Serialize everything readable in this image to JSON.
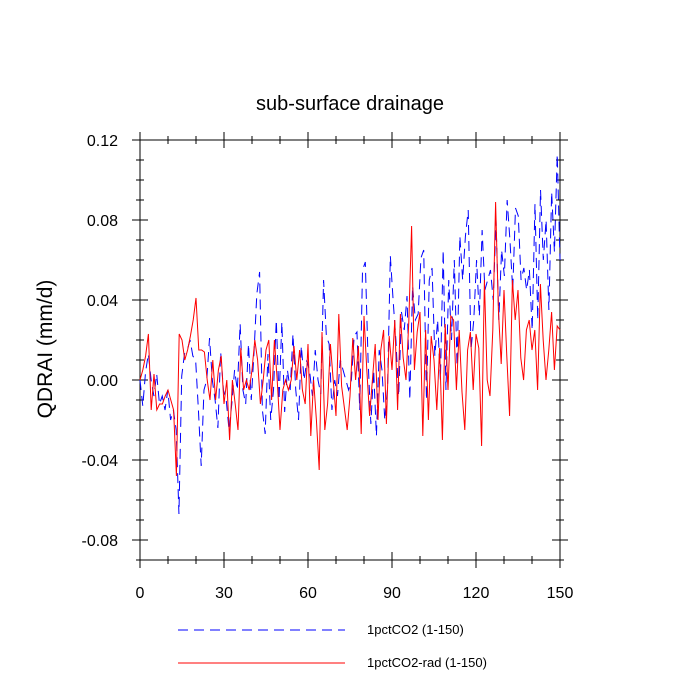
{
  "chart_data": {
    "type": "line",
    "title": "sub-surface drainage",
    "xlabel": "",
    "ylabel": "QDRAI  (mm/d)",
    "xlim": [
      0,
      150
    ],
    "ylim": [
      -0.09,
      0.12
    ],
    "xticks": [
      0,
      30,
      60,
      90,
      120,
      150
    ],
    "xtick_labels": [
      "0",
      "30",
      "60",
      "90",
      "120",
      "150"
    ],
    "yticks": [
      -0.08,
      -0.04,
      0.0,
      0.04,
      0.08,
      0.12
    ],
    "ytick_labels": [
      "-0.08",
      "-0.04",
      "0.00",
      "0.04",
      "0.08",
      "0.12"
    ],
    "grid": false,
    "legend_position": "bottom",
    "series": [
      {
        "name": "1pctCO2 (1-150)",
        "color": "#0000ff",
        "style": "dashed",
        "values": [
          0.0,
          -0.013,
          0.004,
          0.013,
          0.0,
          -0.008,
          0.003,
          -0.012,
          -0.008,
          -0.015,
          -0.005,
          -0.02,
          -0.015,
          -0.025,
          -0.067,
          0.002,
          0.013,
          0.015,
          0.02,
          0.012,
          0.01,
          -0.015,
          -0.043,
          -0.005,
          0.0,
          0.021,
          0.0,
          -0.01,
          -0.024,
          0.014,
          -0.005,
          -0.01,
          -0.025,
          -0.012,
          0.005,
          -0.005,
          0.028,
          -0.005,
          -0.012,
          0.018,
          -0.01,
          0.014,
          0.043,
          0.054,
          -0.015,
          -0.027,
          0.013,
          -0.02,
          -0.005,
          0.03,
          -0.01,
          0.029,
          -0.016,
          0.005,
          -0.005,
          0.023,
          -0.005,
          -0.02,
          0.017,
          0.0,
          0.01,
          0.004,
          -0.008,
          0.015,
          0.0,
          -0.007,
          0.05,
          0.022,
          0.018,
          -0.015,
          0.0,
          -0.008,
          0.01,
          0.005,
          0.0,
          -0.005,
          0.0,
          0.022,
          0.024,
          -0.015,
          0.055,
          0.059,
          0.01,
          -0.022,
          0.005,
          -0.028,
          0.015,
          0.005,
          -0.02,
          -0.004,
          0.062,
          0.04,
          0.02,
          -0.008,
          0.034,
          0.025,
          0.042,
          -0.01,
          0.047,
          0.03,
          0.033,
          0.061,
          0.065,
          -0.01,
          0.05,
          0.056,
          0.012,
          0.03,
          0.0,
          0.065,
          -0.005,
          0.05,
          0.02,
          0.06,
          0.007,
          0.072,
          0.05,
          0.072,
          0.085,
          0.015,
          0.03,
          0.06,
          0.032,
          0.075,
          0.045,
          0.05,
          0.055,
          0.04,
          0.08,
          0.03,
          0.065,
          0.052,
          0.09,
          0.07,
          0.045,
          0.086,
          0.082,
          0.05,
          0.056,
          0.045,
          0.055,
          0.025,
          0.088,
          0.03,
          0.095,
          0.06,
          0.08,
          0.035,
          0.094,
          0.064,
          0.113,
          0.06
        ]
      },
      {
        "name": "1pctCO2-rad (1-150)",
        "color": "#ff0000",
        "style": "solid",
        "values": [
          0.0,
          0.005,
          0.012,
          0.023,
          -0.015,
          0.003,
          -0.015,
          -0.012,
          -0.012,
          -0.008,
          -0.005,
          -0.01,
          -0.015,
          -0.048,
          0.023,
          0.02,
          0.01,
          0.015,
          0.022,
          0.03,
          0.041,
          0.015,
          0.015,
          0.014,
          0.0,
          -0.01,
          0.01,
          -0.01,
          0.005,
          0.012,
          -0.012,
          0.0,
          -0.03,
          0.0,
          -0.012,
          -0.025,
          0.016,
          -0.005,
          0.0,
          -0.005,
          0.005,
          0.02,
          0.01,
          -0.012,
          0.0,
          0.015,
          0.02,
          -0.01,
          0.02,
          0.0,
          -0.025,
          -0.005,
          0.0,
          -0.005,
          0.0,
          0.017,
          0.0,
          0.015,
          -0.005,
          -0.012,
          0.018,
          -0.028,
          0.0,
          -0.02,
          -0.045,
          0.024,
          -0.025,
          -0.012,
          0.018,
          0.0,
          -0.018,
          0.033,
          -0.003,
          -0.014,
          -0.025,
          -0.008,
          0.021,
          0.0,
          0.017,
          -0.027,
          0.032,
          0.005,
          -0.018,
          0.0,
          0.018,
          -0.02,
          0.015,
          0.025,
          -0.022,
          0.022,
          0.005,
          0.03,
          -0.015,
          0.033,
          0.011,
          0.0,
          0.029,
          0.077,
          0.005,
          0.024,
          0.034,
          -0.028,
          0.025,
          -0.02,
          0.022,
          0.01,
          -0.015,
          0.016,
          -0.03,
          0.028,
          -0.005,
          0.032,
          0.03,
          -0.005,
          0.025,
          -0.006,
          -0.025,
          0.015,
          0.024,
          -0.005,
          0.023,
          0.016,
          -0.033,
          0.05,
          0.0,
          -0.008,
          0.025,
          0.089,
          0.035,
          0.008,
          0.045,
          0.012,
          -0.018,
          0.05,
          0.03,
          0.045,
          0.011,
          0.0,
          0.025,
          0.03,
          0.015,
          0.025,
          -0.005,
          0.048,
          0.02,
          0.0,
          0.015,
          0.034,
          0.005,
          0.027,
          0.025
        ]
      }
    ]
  }
}
